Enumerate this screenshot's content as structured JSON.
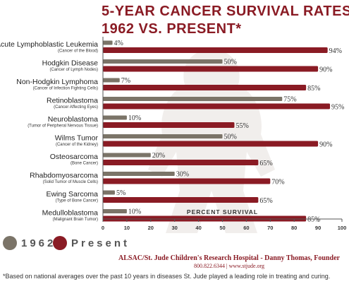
{
  "title_line1": "5-YEAR CANCER SURVIVAL RATES",
  "title_line2": "1962 VS. PRESENT*",
  "credit_line1": "ALSAC/St. Jude Children's Research Hospital - Danny Thomas, Founder",
  "credit_line2": "800.822.6344  |  www.stjude.org",
  "footnote": "*Based on national averages over the past 10 years in diseases St. Jude played a leading role in treating and curing.",
  "legend": {
    "item1": {
      "label": "1962",
      "color": "#7b7468"
    },
    "item2": {
      "label": "Present",
      "color": "#8a1b24"
    }
  },
  "colors": {
    "series_1962": "#7b7468",
    "series_present": "#8a1b24",
    "title": "#8a1b24"
  },
  "chart_data": {
    "type": "bar",
    "orientation": "horizontal",
    "title": "5-YEAR CANCER SURVIVAL RATES 1962 VS. PRESENT*",
    "xlabel": "PERCENT SURVIVAL",
    "ylabel": "",
    "xlim": [
      0,
      100
    ],
    "xticks": [
      0,
      10,
      20,
      30,
      40,
      50,
      60,
      70,
      80,
      90,
      100
    ],
    "grid": false,
    "legend_position": "bottom-left",
    "categories": [
      {
        "name": "Acute Lymphoblastic Leukemia",
        "sub": "(Cancer of the Blood)"
      },
      {
        "name": "Hodgkin Disease",
        "sub": "(Cancer of Lymph Nodes)"
      },
      {
        "name": "Non-Hodgkin Lymphoma",
        "sub": "(Cancer of Infection Fighting Cells)"
      },
      {
        "name": "Retinoblastoma",
        "sub": "(Cancer Affecting Eyes)"
      },
      {
        "name": "Neuroblastoma",
        "sub": "(Tumor of Peripheral Nervous Tissue)"
      },
      {
        "name": "Wilms Tumor",
        "sub": "(Cancer of the Kidney)"
      },
      {
        "name": "Osteosarcoma",
        "sub": "(Bone Cancer)"
      },
      {
        "name": "Rhabdomyosarcoma",
        "sub": "(Solid Tumor of Muscle Cells)"
      },
      {
        "name": "Ewing Sarcoma",
        "sub": "(Type of Bone Cancer)"
      },
      {
        "name": "Medulloblastoma",
        "sub": "(Malignant Brain Tumor)"
      }
    ],
    "series": [
      {
        "name": "1962",
        "values": [
          4,
          50,
          7,
          75,
          10,
          50,
          20,
          30,
          5,
          10
        ]
      },
      {
        "name": "Present",
        "values": [
          94,
          90,
          85,
          95,
          55,
          90,
          65,
          70,
          65,
          85
        ]
      }
    ]
  }
}
